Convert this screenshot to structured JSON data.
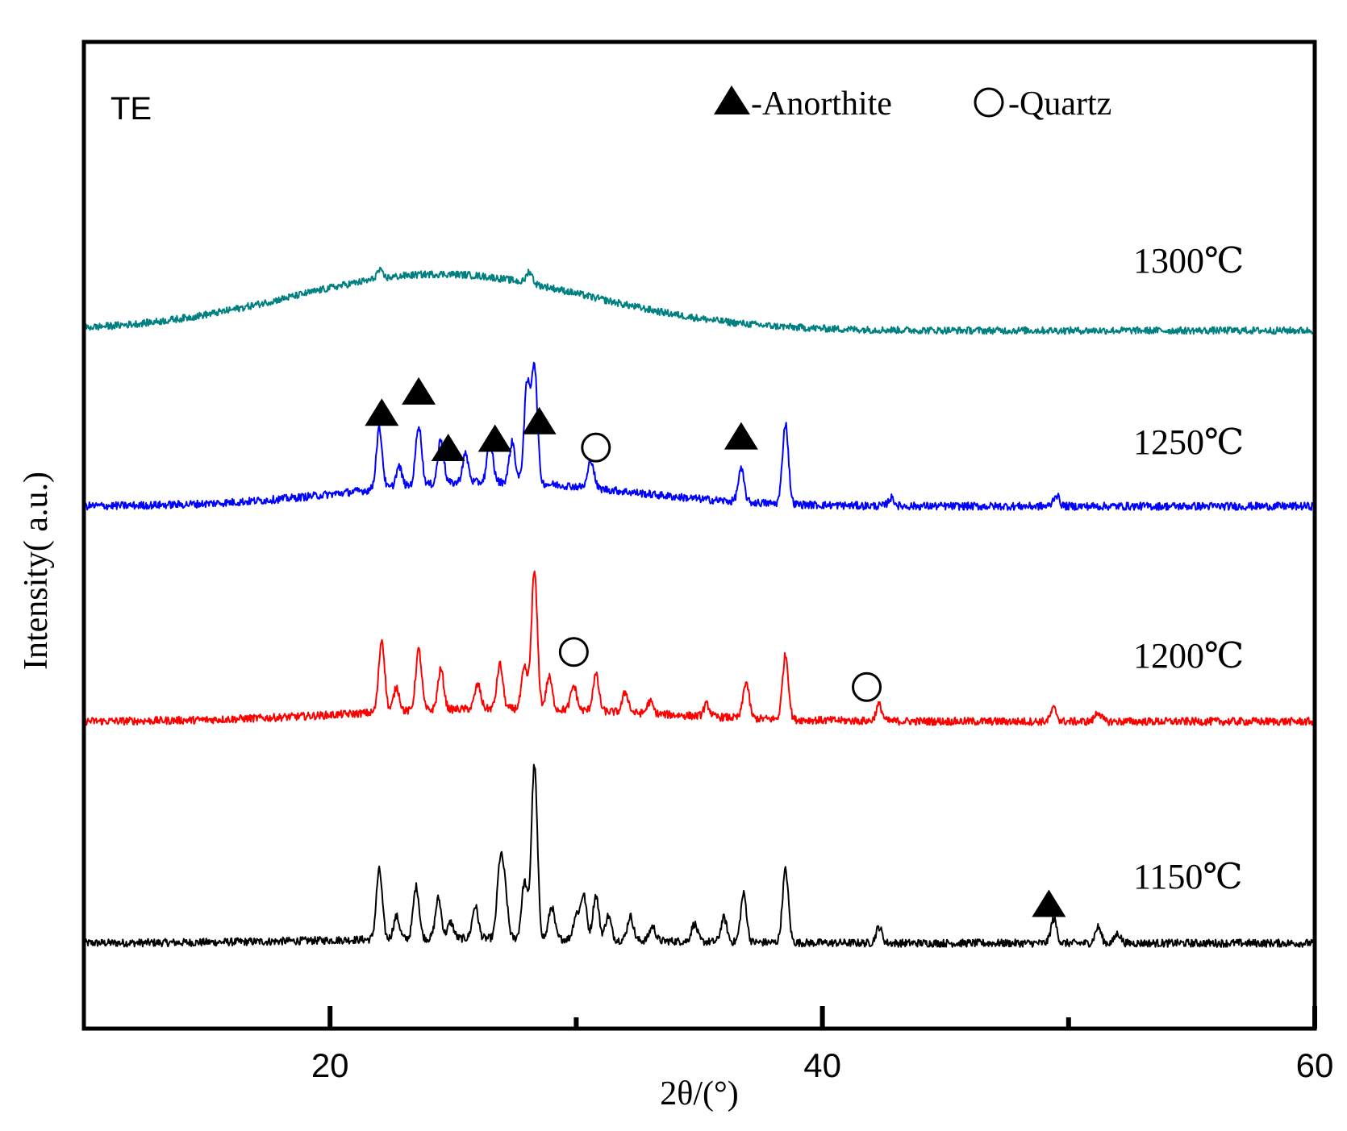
{
  "chart_data": {
    "type": "line",
    "title": "",
    "panel_label": "TE",
    "xlabel": "2θ/(°)",
    "ylabel": "Intensity(  a.u.)",
    "xlim": [
      10,
      60
    ],
    "xticks_major": [
      20,
      40,
      60
    ],
    "xticks_minor": [
      30,
      50
    ],
    "legend": [
      {
        "symbol": "triangle",
        "label": "-Anorthite"
      },
      {
        "symbol": "circle",
        "label": "-Quartz"
      }
    ],
    "series": [
      {
        "name": "1150℃",
        "color": "#000000",
        "noise": 2.2,
        "baseline": 0,
        "hump": {
          "center": 26,
          "width": 6,
          "height": 6
        },
        "peaks": [
          [
            22.0,
            86
          ],
          [
            22.7,
            28
          ],
          [
            23.5,
            65
          ],
          [
            24.4,
            50
          ],
          [
            24.9,
            20
          ],
          [
            25.9,
            40
          ],
          [
            26.9,
            86
          ],
          [
            27.1,
            55
          ],
          [
            27.9,
            70
          ],
          [
            28.3,
            215
          ],
          [
            29.0,
            40
          ],
          [
            30.0,
            30
          ],
          [
            30.3,
            55
          ],
          [
            30.8,
            55
          ],
          [
            31.3,
            30
          ],
          [
            32.2,
            30
          ],
          [
            33.1,
            18
          ],
          [
            34.8,
            22
          ],
          [
            36.0,
            30
          ],
          [
            36.8,
            60
          ],
          [
            38.5,
            90
          ],
          [
            42.3,
            20
          ],
          [
            49.4,
            30
          ],
          [
            51.2,
            20
          ],
          [
            52.0,
            12
          ]
        ]
      },
      {
        "name": "1200℃",
        "color": "#ff0000",
        "noise": 2.2,
        "baseline": 0,
        "hump": {
          "center": 27,
          "width": 6,
          "height": 16
        },
        "peaks": [
          [
            22.1,
            90
          ],
          [
            22.7,
            30
          ],
          [
            23.6,
            75
          ],
          [
            24.5,
            50
          ],
          [
            26.0,
            30
          ],
          [
            26.9,
            55
          ],
          [
            27.9,
            50
          ],
          [
            28.3,
            170
          ],
          [
            28.9,
            40
          ],
          [
            29.9,
            30
          ],
          [
            30.8,
            45
          ],
          [
            32.0,
            25
          ],
          [
            33.0,
            15
          ],
          [
            35.3,
            15
          ],
          [
            36.9,
            45
          ],
          [
            38.5,
            80
          ],
          [
            42.3,
            20
          ],
          [
            49.4,
            16
          ],
          [
            51.2,
            12
          ]
        ]
      },
      {
        "name": "1250℃",
        "color": "#0000ff",
        "noise": 2.2,
        "baseline": 0,
        "hump": {
          "center": 26.5,
          "width": 5.5,
          "height": 30
        },
        "peaks": [
          [
            22.0,
            75
          ],
          [
            22.8,
            25
          ],
          [
            23.6,
            75
          ],
          [
            24.5,
            55
          ],
          [
            25.5,
            35
          ],
          [
            26.5,
            50
          ],
          [
            27.4,
            50
          ],
          [
            28.0,
            120
          ],
          [
            28.3,
            145
          ],
          [
            30.6,
            35
          ],
          [
            36.7,
            40
          ],
          [
            38.5,
            100
          ],
          [
            42.8,
            10
          ],
          [
            49.5,
            14
          ]
        ]
      },
      {
        "name": "1300℃",
        "color": "#008080",
        "noise": 2.0,
        "baseline": 0,
        "hump": {
          "center": 24.5,
          "width": 6.0,
          "height": 70
        },
        "peaks": [
          [
            22.0,
            10
          ],
          [
            28.1,
            15
          ]
        ]
      }
    ],
    "annotations": [
      {
        "symbol": "triangle",
        "series": "1250℃",
        "x": 22.1
      },
      {
        "symbol": "triangle",
        "series": "1250℃",
        "x": 23.6
      },
      {
        "symbol": "triangle",
        "series": "1250℃",
        "x": 24.8
      },
      {
        "symbol": "triangle",
        "series": "1250℃",
        "x": 26.7
      },
      {
        "symbol": "triangle",
        "series": "1250℃",
        "x": 28.5
      },
      {
        "symbol": "circle",
        "series": "1250℃",
        "x": 30.8
      },
      {
        "symbol": "triangle",
        "series": "1250℃",
        "x": 36.7
      },
      {
        "symbol": "circle",
        "series": "1200℃",
        "x": 29.9
      },
      {
        "symbol": "circle",
        "series": "1200℃",
        "x": 41.8
      },
      {
        "symbol": "triangle",
        "series": "1150℃",
        "x": 49.2
      }
    ]
  }
}
